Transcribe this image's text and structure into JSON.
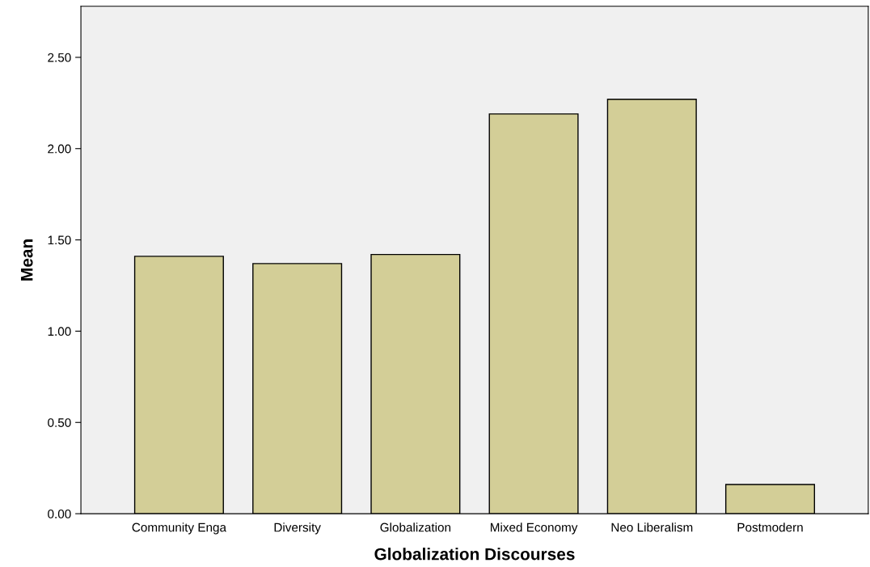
{
  "chart_data": {
    "type": "bar",
    "xlabel": "Globalization Discourses",
    "ylabel": "Mean",
    "categories": [
      "Community Enga",
      "Diversity",
      "Globalization",
      "Mixed Economy",
      "Neo Liberalism",
      "Postmodern"
    ],
    "values": [
      1.41,
      1.37,
      1.42,
      2.19,
      2.27,
      0.16
    ],
    "color": "#d3ce97",
    "ylim": [
      0,
      2.78
    ],
    "yticks": [
      {
        "value": 0,
        "label": "0.00"
      },
      {
        "value": 0.5,
        "label": "0.50"
      },
      {
        "value": 1.0,
        "label": "1.00"
      },
      {
        "value": 1.5,
        "label": "1.50"
      },
      {
        "value": 2.0,
        "label": "2.00"
      },
      {
        "value": 2.5,
        "label": "2.50"
      }
    ],
    "grid": false
  }
}
